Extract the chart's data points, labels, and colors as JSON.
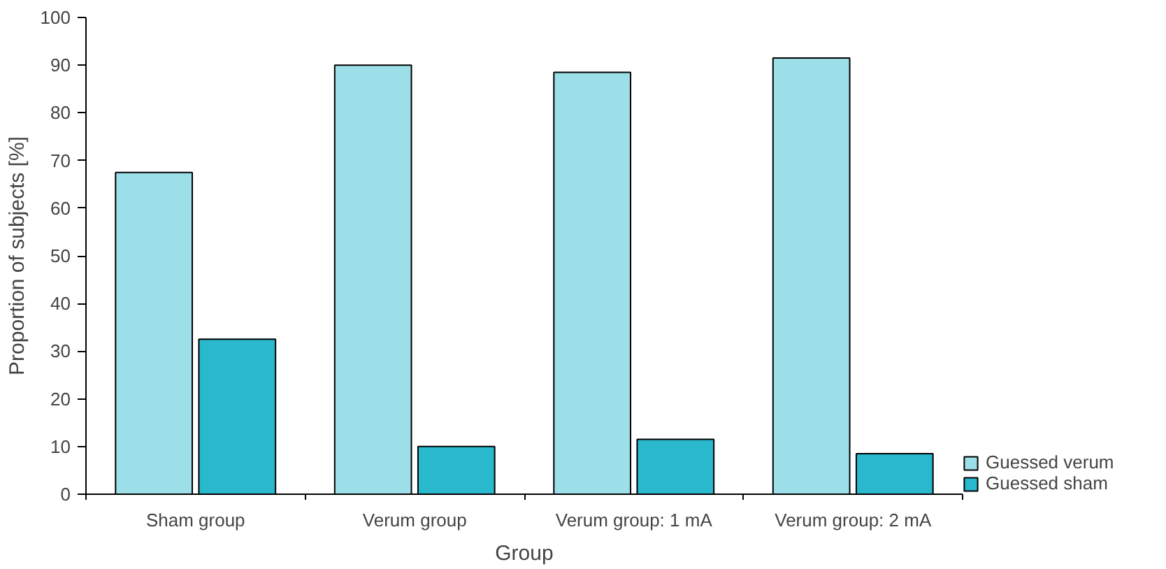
{
  "chart_data": {
    "type": "bar",
    "xlabel": "Group",
    "ylabel": "Proportion of subjects [%]",
    "categories": [
      "Sham group",
      "Verum group",
      "Verum group: 1 mA",
      "Verum group: 2 mA"
    ],
    "series": [
      {
        "name": "Guessed verum",
        "color": "#9ddfe8",
        "values": [
          67.5,
          90,
          88.5,
          91.5
        ]
      },
      {
        "name": "Guessed sham",
        "color": "#29b8cc",
        "values": [
          32.5,
          10,
          11.5,
          8.5
        ]
      }
    ],
    "ylim": [
      0,
      100
    ],
    "yticks": [
      0,
      10,
      20,
      30,
      40,
      50,
      60,
      70,
      80,
      90,
      100
    ],
    "grid": false,
    "legend": "right"
  }
}
